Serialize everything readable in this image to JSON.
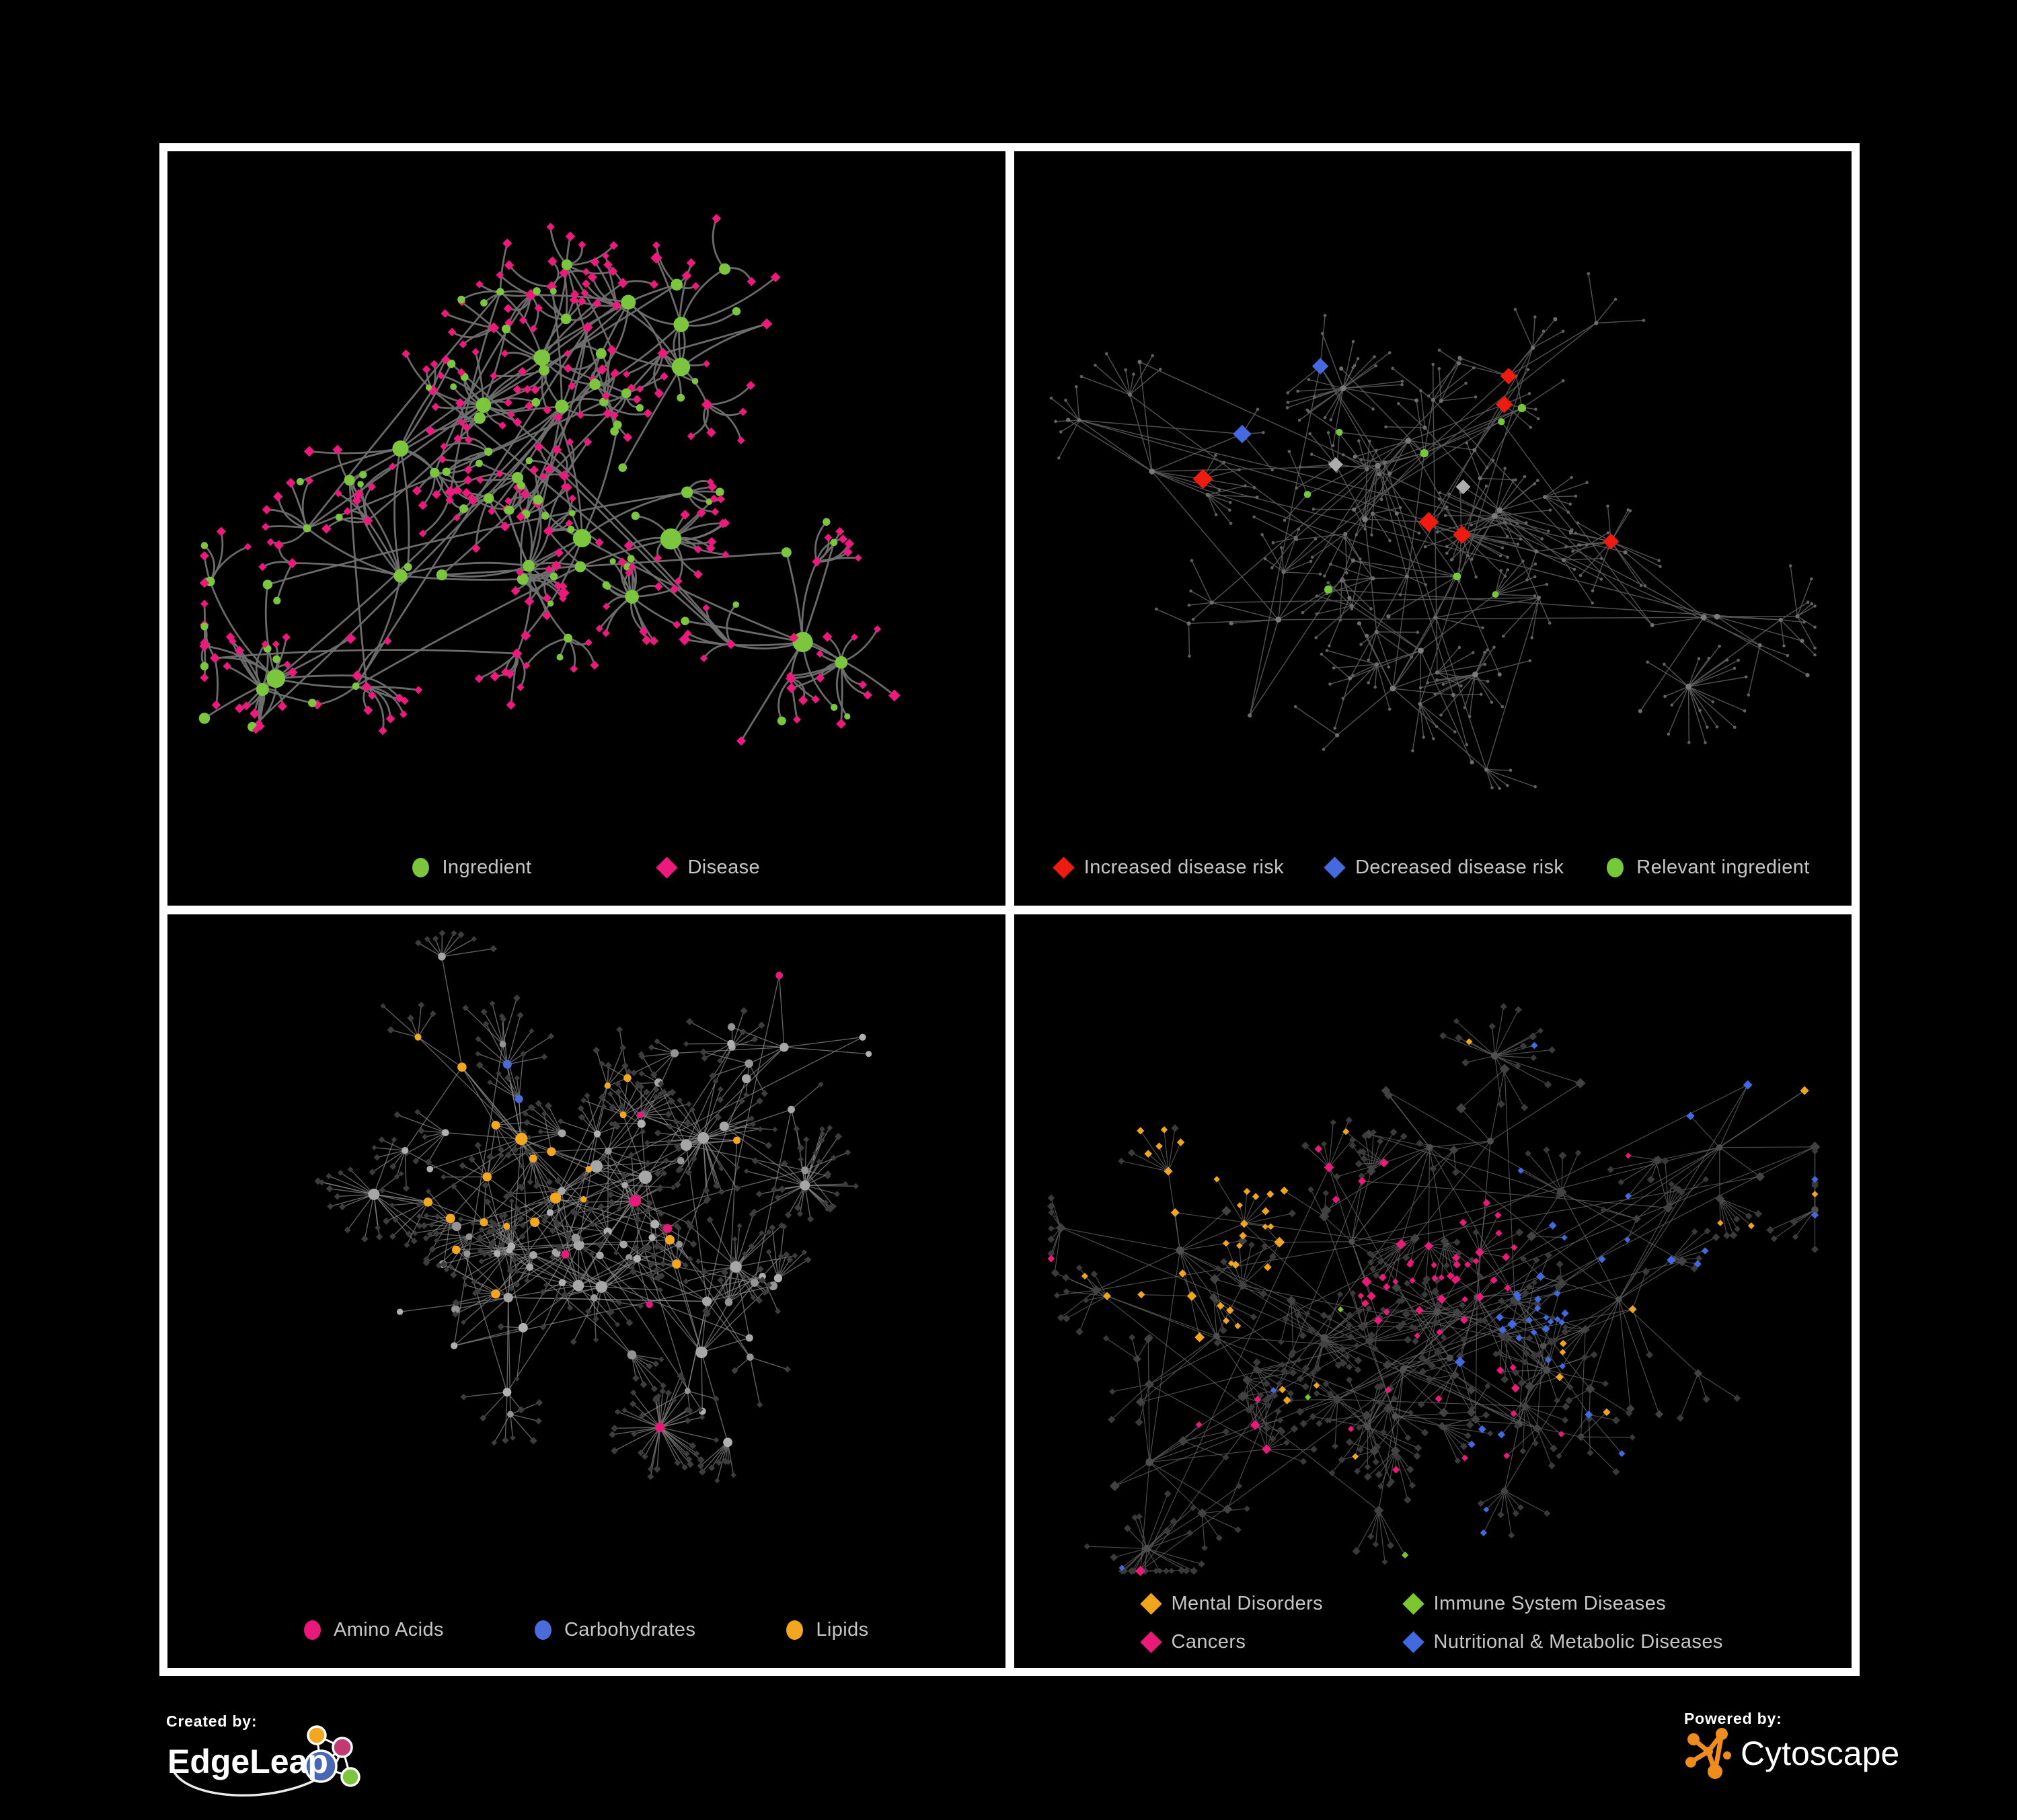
{
  "page": {
    "background": "#000000",
    "frame_color": "#ffffff"
  },
  "panels": [
    {
      "id": "ingredient-disease",
      "legend": {
        "items": [
          {
            "label": "Ingredient",
            "shape": "circle",
            "color": "#7CC63E"
          },
          {
            "label": "Disease",
            "shape": "diamond",
            "color": "#EB1A7C"
          }
        ]
      },
      "network": {
        "seed": 7,
        "clusters": 11,
        "subMin": 5,
        "subRange": 6,
        "fanChance": 0.6,
        "fanMax": 6,
        "bursts": 5,
        "burstMin": 12,
        "burstRange": 12,
        "cross": 26,
        "edge": {
          "color": "#707070",
          "width": 2.8,
          "opacity": 0.95,
          "curve": 22
        },
        "palette": {
          "green": "#7CC63E",
          "pink": "#EB1A7C"
        }
      }
    },
    {
      "id": "disease-risk",
      "legend": {
        "items": [
          {
            "label": "Increased disease risk",
            "shape": "diamond",
            "color": "#ED1B10"
          },
          {
            "label": "Decreased disease risk",
            "shape": "diamond",
            "color": "#4569DF"
          },
          {
            "label": "Relevant ingredient",
            "shape": "circle",
            "color": "#75C838"
          }
        ]
      },
      "network": {
        "seed": 23,
        "clusters": 13,
        "subMin": 4,
        "subRange": 6,
        "fanChance": 0.68,
        "fanMax": 6,
        "bursts": 6,
        "burstMin": 10,
        "burstRange": 12,
        "cross": 30,
        "edge": {
          "color": "#5C5C5C",
          "width": 1.5,
          "opacity": 0.85,
          "curve": 0
        },
        "palette": {
          "red": "#ED1B10",
          "blue": "#4569DF",
          "green": "#75C838",
          "gray": "#ACACAC",
          "base0": "#7A7A7A",
          "base1": "#6E6E6E",
          "base2": "#626262"
        }
      }
    },
    {
      "id": "nutrient-classes",
      "legend": {
        "items": [
          {
            "label": "Amino Acids",
            "shape": "circle",
            "color": "#E8197B"
          },
          {
            "label": "Carbohydrates",
            "shape": "circle",
            "color": "#4A6BD9"
          },
          {
            "label": "Lipids",
            "shape": "circle",
            "color": "#F2A71F"
          }
        ]
      },
      "network": {
        "seed": 41,
        "clusters": 12,
        "subMin": 5,
        "subRange": 7,
        "fanChance": 0.7,
        "fanMax": 7,
        "bursts": 7,
        "burstMin": 14,
        "burstRange": 22,
        "cross": 34,
        "edge": {
          "color": "#8A8A8A",
          "width": 1.4,
          "opacity": 0.7,
          "curve": 0
        },
        "palette": {
          "orange": "#F2A71F",
          "pink": "#E8197B",
          "blue": "#4A6BD9",
          "hub": "#A6A6A6",
          "mid": "#949494",
          "leaf": "#3D3D3D"
        }
      }
    },
    {
      "id": "disease-classes",
      "legend": {
        "items": [
          {
            "label": "Mental Disorders",
            "shape": "diamond",
            "color": "#F0A51D"
          },
          {
            "label": "Immune System Diseases",
            "shape": "diamond",
            "color": "#7CC62E"
          },
          {
            "label": "Cancers",
            "shape": "diamond",
            "color": "#EA1A78"
          },
          {
            "label": "Nutritional & Metabolic Diseases",
            "shape": "diamond",
            "color": "#4169E0"
          }
        ]
      },
      "network": {
        "seed": 61,
        "clusters": 14,
        "subMin": 5,
        "subRange": 7,
        "fanChance": 0.72,
        "fanMax": 7,
        "bursts": 7,
        "burstMin": 12,
        "burstRange": 18,
        "cross": 38,
        "edge": {
          "color": "#5E5E5E",
          "width": 1.2,
          "opacity": 0.8,
          "curve": 0
        },
        "palette": {
          "orange": "#F0A51D",
          "green": "#7CC62E",
          "pink": "#EA1A78",
          "blue": "#4169E0",
          "hub": "#4F4F4F",
          "mid": "#424242",
          "leaf": "#3A3A3A"
        }
      }
    }
  ],
  "footer": {
    "created_by": {
      "label": "Created by:",
      "brand": "EdgeLeap"
    },
    "powered_by": {
      "label": "Powered by:",
      "brand": "Cytoscape"
    },
    "edgeleap_colors": {
      "orange": "#F2A71F",
      "magenta": "#C23A72",
      "blue": "#4A67B5",
      "green": "#7CC63E"
    },
    "cytoscape_color": "#EE8C1E"
  }
}
